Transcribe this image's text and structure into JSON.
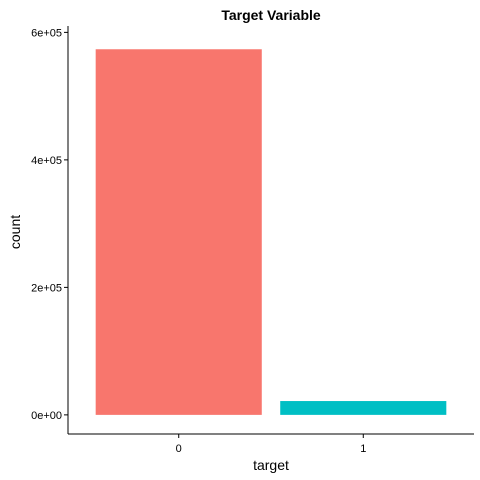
{
  "chart_data": {
    "type": "bar",
    "title": "Target Variable",
    "xlabel": "target",
    "ylabel": "count",
    "categories": [
      "0",
      "1"
    ],
    "values": [
      573518,
      21694
    ],
    "colors": [
      "#F8766D",
      "#00BFC4"
    ],
    "ylim": [
      -30000,
      610000
    ],
    "yticks": [
      0,
      200000,
      400000,
      600000
    ],
    "ytick_labels": [
      "0e+00",
      "2e+05",
      "4e+05",
      "6e+05"
    ],
    "grid": false,
    "legend": "none"
  }
}
